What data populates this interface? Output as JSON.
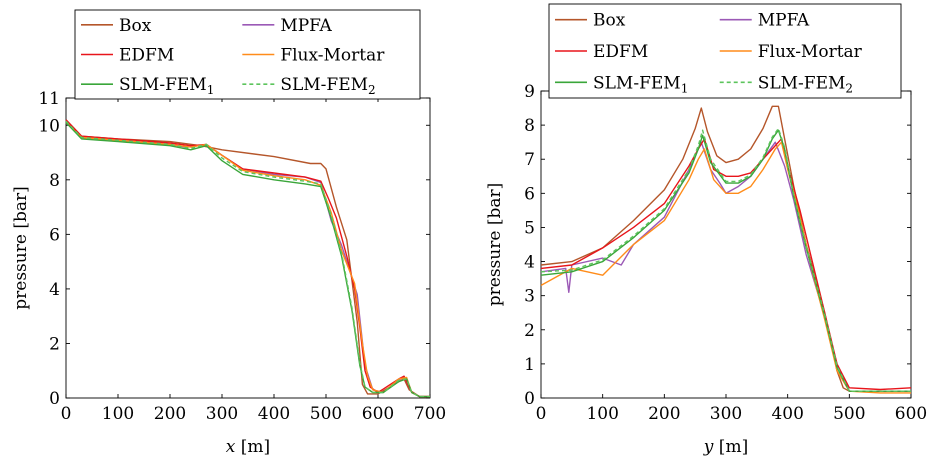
{
  "chart_data": [
    {
      "type": "line",
      "title": "",
      "xlabel_var": "x",
      "xlabel_unit": " [m]",
      "ylabel": "pressure [bar]",
      "xlim": [
        0,
        700
      ],
      "ylim": [
        0,
        11
      ],
      "xticks": [
        "0",
        "100",
        "200",
        "300",
        "400",
        "500",
        "600",
        "700"
      ],
      "yticks": [
        "0",
        "2",
        "4",
        "6",
        "8",
        "10",
        "11"
      ],
      "legend_position": "top (above plot)",
      "legend": {
        "box": "Box",
        "mpfa": "MPFA",
        "edfm": "EDFM",
        "flux": "Flux-Mortar",
        "slm1_base": "SLM-FEM",
        "slm1_sub": "1",
        "slm2_base": "SLM-FEM",
        "slm2_sub": "2"
      },
      "series": [
        {
          "name": "Box",
          "color": "#b5562a",
          "dash": false,
          "x": [
            0,
            30,
            100,
            200,
            260,
            300,
            400,
            470,
            490,
            500,
            520,
            540,
            560,
            570,
            580,
            600,
            640,
            650,
            660,
            680,
            700
          ],
          "y": [
            10.2,
            9.6,
            9.5,
            9.4,
            9.25,
            9.1,
            8.85,
            8.6,
            8.6,
            8.4,
            7.0,
            5.8,
            2.8,
            0.5,
            0.15,
            0.15,
            0.6,
            0.7,
            0.3,
            0.05,
            0.05
          ]
        },
        {
          "name": "MPFA",
          "color": "#9b59b6",
          "dash": false,
          "x": [
            0,
            30,
            100,
            200,
            230,
            270,
            300,
            340,
            400,
            460,
            490,
            510,
            530,
            560,
            575,
            590,
            610,
            650,
            665,
            680,
            700
          ],
          "y": [
            10.1,
            9.55,
            9.45,
            9.3,
            9.2,
            9.3,
            8.9,
            8.4,
            8.2,
            8.1,
            7.9,
            6.5,
            5.6,
            3.8,
            1.2,
            0.3,
            0.2,
            0.8,
            0.2,
            0.05,
            0.05
          ]
        },
        {
          "name": "EDFM",
          "color": "#e8151b",
          "dash": false,
          "x": [
            0,
            30,
            100,
            200,
            240,
            270,
            300,
            340,
            400,
            460,
            490,
            505,
            520,
            540,
            555,
            565,
            575,
            585,
            600,
            640,
            650,
            665,
            680,
            700
          ],
          "y": [
            10.2,
            9.6,
            9.5,
            9.35,
            9.25,
            9.3,
            8.9,
            8.4,
            8.25,
            8.1,
            7.95,
            7.3,
            6.6,
            5.2,
            4.0,
            2.6,
            1.0,
            0.4,
            0.2,
            0.7,
            0.8,
            0.2,
            0.05,
            0.05
          ]
        },
        {
          "name": "Flux-Mortar",
          "color": "#ff8c1a",
          "dash": false,
          "x": [
            0,
            30,
            100,
            200,
            240,
            270,
            300,
            340,
            400,
            460,
            490,
            510,
            530,
            555,
            570,
            580,
            590,
            610,
            640,
            655,
            665,
            680,
            700
          ],
          "y": [
            10.1,
            9.55,
            9.45,
            9.3,
            9.2,
            9.3,
            8.9,
            8.35,
            8.15,
            8.0,
            7.8,
            6.8,
            5.4,
            4.2,
            2.0,
            0.8,
            0.3,
            0.2,
            0.7,
            0.75,
            0.2,
            0.05,
            0.05
          ]
        },
        {
          "name": "SLM-FEM1",
          "color": "#3aa63a",
          "dash": false,
          "x": [
            0,
            30,
            100,
            200,
            240,
            270,
            300,
            340,
            400,
            460,
            490,
            510,
            530,
            550,
            565,
            575,
            590,
            610,
            640,
            655,
            665,
            680,
            700
          ],
          "y": [
            10.1,
            9.5,
            9.4,
            9.25,
            9.1,
            9.25,
            8.7,
            8.2,
            8.0,
            7.85,
            7.75,
            6.6,
            5.2,
            3.2,
            1.2,
            0.4,
            0.2,
            0.2,
            0.6,
            0.7,
            0.2,
            0.05,
            0.05
          ]
        },
        {
          "name": "SLM-FEM2",
          "color": "#5cc45c",
          "dash": true,
          "x": [
            0,
            30,
            100,
            200,
            240,
            270,
            300,
            340,
            400,
            460,
            490,
            510,
            530,
            550,
            565,
            575,
            590,
            610,
            640,
            655,
            665,
            680,
            700
          ],
          "y": [
            10.15,
            9.55,
            9.45,
            9.3,
            9.15,
            9.3,
            8.8,
            8.3,
            8.1,
            7.95,
            7.85,
            6.7,
            5.3,
            3.3,
            1.3,
            0.4,
            0.2,
            0.2,
            0.65,
            0.7,
            0.2,
            0.05,
            0.05
          ]
        }
      ]
    },
    {
      "type": "line",
      "title": "",
      "xlabel_var": "y",
      "xlabel_unit": " [m]",
      "ylabel": "pressure [bar]",
      "xlim": [
        0,
        600
      ],
      "ylim": [
        0,
        9
      ],
      "xticks": [
        "0",
        "100",
        "200",
        "300",
        "400",
        "500",
        "600"
      ],
      "yticks": [
        "0",
        "1",
        "2",
        "3",
        "4",
        "5",
        "6",
        "7",
        "8",
        "9"
      ],
      "legend_position": "top (above plot)",
      "legend": {
        "box": "Box",
        "mpfa": "MPFA",
        "edfm": "EDFM",
        "flux": "Flux-Mortar",
        "slm1_base": "SLM-FEM",
        "slm1_sub": "1",
        "slm2_base": "SLM-FEM",
        "slm2_sub": "2"
      },
      "series": [
        {
          "name": "Box",
          "color": "#b5562a",
          "dash": false,
          "x": [
            0,
            50,
            100,
            150,
            200,
            230,
            250,
            260,
            270,
            285,
            300,
            320,
            340,
            360,
            375,
            385,
            395,
            410,
            430,
            460,
            480,
            490,
            500,
            550,
            600
          ],
          "y": [
            3.9,
            4.0,
            4.4,
            5.2,
            6.1,
            7.0,
            7.9,
            8.5,
            7.8,
            7.1,
            6.9,
            7.0,
            7.3,
            7.9,
            8.55,
            8.55,
            7.6,
            6.2,
            4.5,
            2.5,
            0.8,
            0.3,
            0.2,
            0.2,
            0.2
          ]
        },
        {
          "name": "MPFA",
          "color": "#9b59b6",
          "dash": false,
          "x": [
            0,
            40,
            45,
            50,
            100,
            130,
            150,
            200,
            240,
            260,
            275,
            290,
            300,
            320,
            340,
            360,
            380,
            395,
            410,
            430,
            460,
            480,
            500,
            550,
            600
          ],
          "y": [
            3.7,
            3.8,
            3.1,
            3.9,
            4.1,
            3.9,
            4.5,
            5.3,
            6.7,
            7.5,
            6.7,
            6.3,
            6.0,
            6.2,
            6.5,
            7.0,
            7.5,
            6.8,
            5.8,
            4.2,
            2.4,
            1.0,
            0.2,
            0.2,
            0.2
          ]
        },
        {
          "name": "EDFM",
          "color": "#e8151b",
          "dash": false,
          "x": [
            0,
            50,
            100,
            150,
            200,
            240,
            255,
            265,
            280,
            300,
            320,
            340,
            360,
            380,
            390,
            400,
            420,
            440,
            460,
            480,
            500,
            550,
            600
          ],
          "y": [
            3.8,
            3.9,
            4.4,
            5.0,
            5.7,
            6.8,
            7.3,
            7.6,
            6.7,
            6.5,
            6.5,
            6.6,
            7.0,
            7.4,
            7.6,
            6.8,
            5.5,
            4.0,
            2.5,
            1.0,
            0.3,
            0.25,
            0.3
          ]
        },
        {
          "name": "Flux-Mortar",
          "color": "#ff8c1a",
          "dash": false,
          "x": [
            0,
            50,
            100,
            150,
            200,
            240,
            255,
            265,
            280,
            300,
            320,
            340,
            360,
            380,
            390,
            400,
            420,
            440,
            460,
            480,
            500,
            550,
            600
          ],
          "y": [
            3.3,
            3.8,
            3.6,
            4.5,
            5.2,
            6.4,
            7.0,
            7.3,
            6.4,
            6.0,
            6.0,
            6.2,
            6.7,
            7.3,
            7.5,
            6.7,
            5.3,
            3.7,
            2.3,
            0.8,
            0.2,
            0.15,
            0.15
          ]
        },
        {
          "name": "SLM-FEM1",
          "color": "#3aa63a",
          "dash": false,
          "x": [
            0,
            50,
            100,
            150,
            200,
            240,
            255,
            262,
            275,
            300,
            320,
            340,
            360,
            375,
            385,
            395,
            410,
            430,
            460,
            480,
            500,
            550,
            600
          ],
          "y": [
            3.6,
            3.7,
            4.0,
            4.7,
            5.5,
            6.6,
            7.3,
            7.7,
            6.9,
            6.3,
            6.3,
            6.5,
            7.0,
            7.6,
            7.85,
            7.3,
            5.9,
            4.4,
            2.4,
            0.9,
            0.2,
            0.2,
            0.2
          ]
        },
        {
          "name": "SLM-FEM2",
          "color": "#5cc45c",
          "dash": true,
          "x": [
            0,
            50,
            100,
            150,
            200,
            240,
            255,
            262,
            275,
            300,
            320,
            340,
            360,
            375,
            385,
            395,
            410,
            430,
            460,
            480,
            500,
            550,
            600
          ],
          "y": [
            3.7,
            3.75,
            4.05,
            4.75,
            5.55,
            6.7,
            7.4,
            7.85,
            7.0,
            6.35,
            6.35,
            6.55,
            7.05,
            7.65,
            7.9,
            7.35,
            5.95,
            4.45,
            2.45,
            0.95,
            0.2,
            0.2,
            0.2
          ]
        }
      ]
    }
  ]
}
